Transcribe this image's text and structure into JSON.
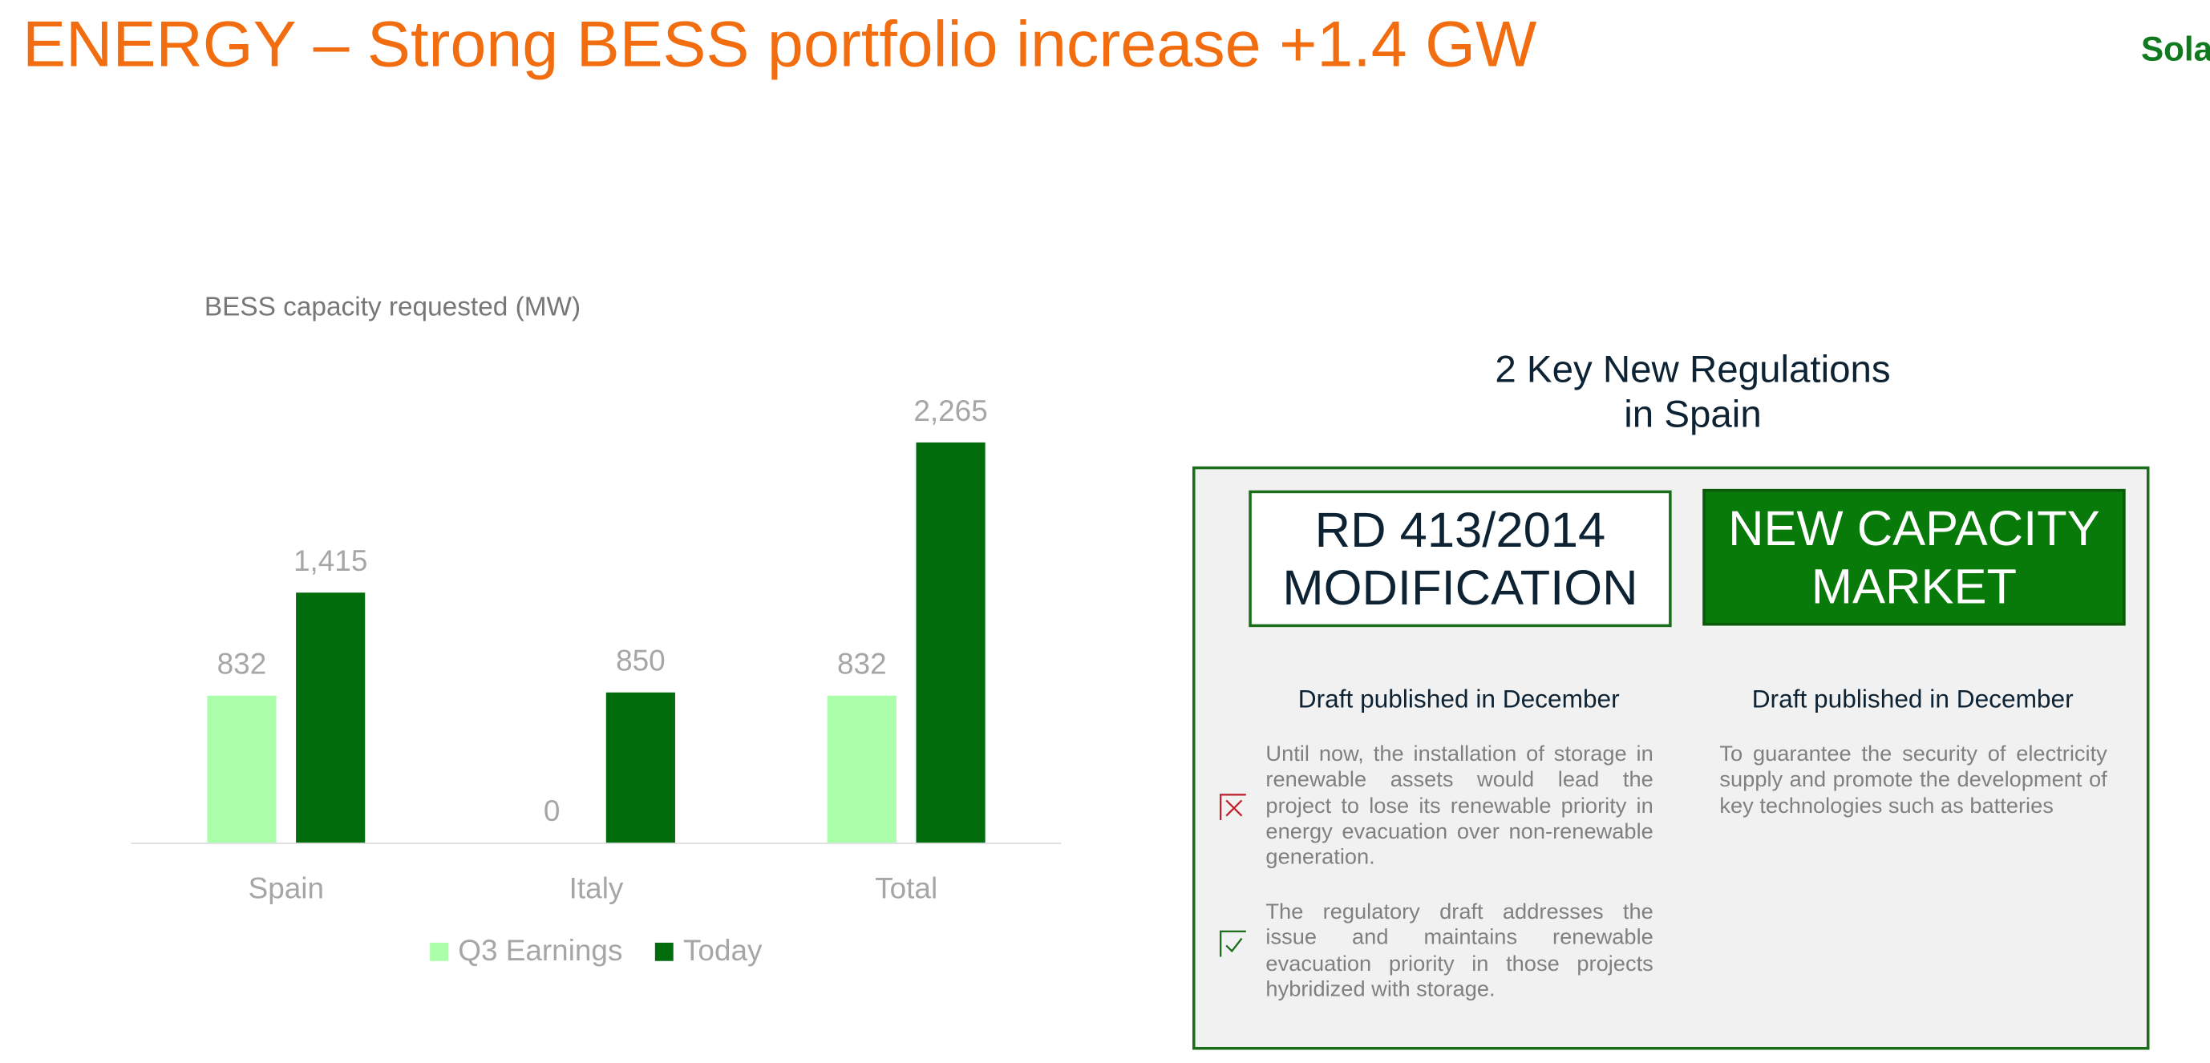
{
  "slide_title": "ENERGY – Strong BESS portfolio increase +1.4 GW",
  "logo": "Sola",
  "chart_data": {
    "type": "bar",
    "title": "BESS capacity requested (MW)",
    "categories": [
      "Spain",
      "Italy",
      "Total"
    ],
    "series": [
      {
        "name": "Q3 Earnings",
        "color": "#abffab",
        "values": [
          832,
          0,
          832
        ],
        "value_labels": [
          "832",
          "0",
          "832"
        ]
      },
      {
        "name": "Today",
        "color": "#006c0c",
        "values": [
          1415,
          850,
          2265
        ],
        "value_labels": [
          "1,415",
          "850",
          "2,265"
        ]
      }
    ],
    "legend": "bottom",
    "grid": false
  },
  "regulations": {
    "heading": [
      "2 Key New Regulations",
      "in Spain"
    ],
    "items": [
      {
        "label": [
          "RD 413/2014",
          "MODIFICATION"
        ],
        "subhead": "Draft published in December",
        "points": [
          "Until now, the installation of storage in renewable assets would lead the project to lose its renewable priority in energy evacuation over non-renewable generation.",
          "The regulatory draft addresses the issue and maintains renewable evacuation priority in those projects hybridized with storage."
        ]
      },
      {
        "label": [
          "NEW CAPACITY",
          "MARKET"
        ],
        "subhead": "Draft published in December",
        "points": [
          "To guarantee the security of electricity supply and promote the development of key technologies such as batteries"
        ]
      }
    ]
  }
}
